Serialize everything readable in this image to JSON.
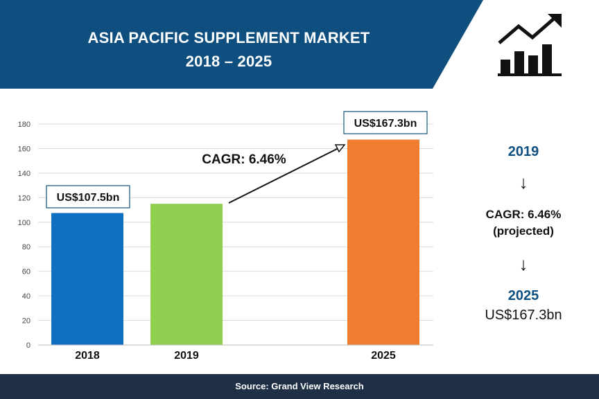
{
  "header": {
    "title_line1": "ASIA PACIFIC SUPPLEMENT MARKET",
    "title_line2": "2018 – 2025",
    "band_color": "#0f4f80",
    "icon": "bar-chart-trend-up-icon"
  },
  "chart_data": {
    "type": "bar",
    "categories": [
      "2018",
      "2019",
      "2025"
    ],
    "values": [
      107.5,
      115,
      167.3
    ],
    "colors": [
      "#0f6fc0",
      "#8fd050",
      "#ee7d31"
    ],
    "ylim": [
      0,
      180
    ],
    "yticks": [
      0,
      20,
      40,
      60,
      80,
      100,
      120,
      140,
      160,
      180
    ],
    "grid": true,
    "data_labels": [
      "US$107.5bn",
      "",
      "US$167.3bn"
    ],
    "annotation": "CAGR: 6.46%"
  },
  "side_panel": {
    "start_year": "2019",
    "arrow1": "down-arrow-icon",
    "cagr_line1": "CAGR: 6.46%",
    "cagr_line2": "(projected)",
    "arrow2": "down-arrow-icon",
    "end_year": "2025",
    "end_value": "US$167.3bn"
  },
  "footer": {
    "source": "Source: Grand View Research"
  }
}
